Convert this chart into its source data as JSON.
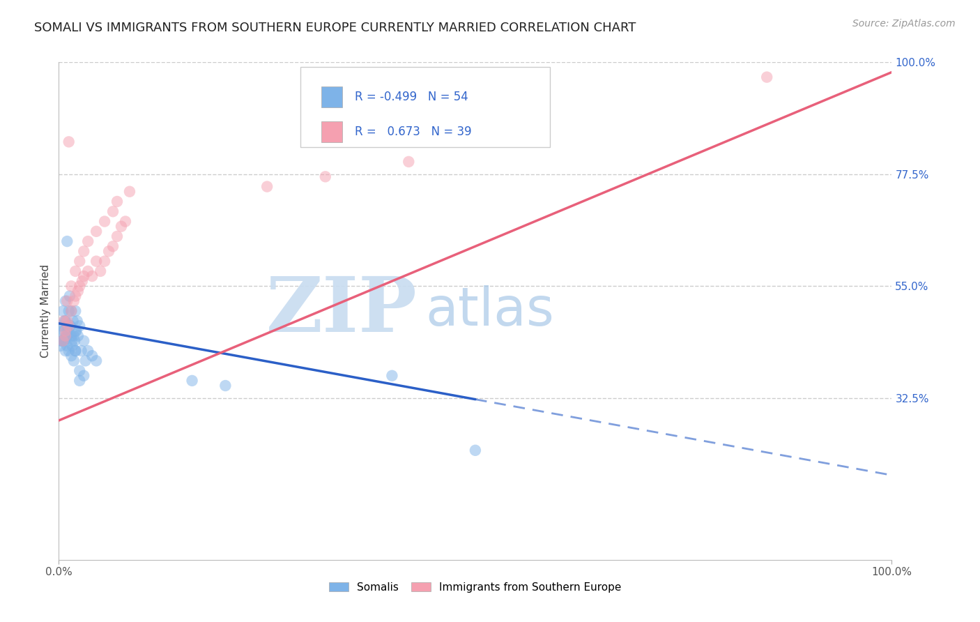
{
  "title": "SOMALI VS IMMIGRANTS FROM SOUTHERN EUROPE CURRENTLY MARRIED CORRELATION CHART",
  "source": "Source: ZipAtlas.com",
  "ylabel": "Currently Married",
  "legend_blue_r": "-0.499",
  "legend_blue_n": "54",
  "legend_pink_r": "0.673",
  "legend_pink_n": "39",
  "blue_scatter_color": "#7EB3E8",
  "pink_scatter_color": "#F5A0B0",
  "blue_line_color": "#2B5FC7",
  "pink_line_color": "#E8607A",
  "legend_text_color": "#3366CC",
  "right_axis_color": "#3366CC",
  "watermark_color": "#C8DCF0",
  "title_fontsize": 13,
  "axis_label_fontsize": 11,
  "legend_fontsize": 12,
  "blue_line_x0": 0,
  "blue_line_y0": 47.5,
  "blue_line_x1": 100,
  "blue_line_y1": 17.0,
  "blue_solid_end": 50,
  "pink_line_x0": 0,
  "pink_line_y0": 28.0,
  "pink_line_x1": 100,
  "pink_line_y1": 98.0,
  "xlim": [
    0,
    100
  ],
  "ylim": [
    0,
    100
  ],
  "yticks_right": [
    32.5,
    55.0,
    77.5,
    100.0
  ],
  "ytick_labels": [
    "32.5%",
    "55.0%",
    "77.5%",
    "100.0%"
  ],
  "blue_x": [
    0.3,
    0.5,
    0.5,
    0.7,
    0.8,
    0.9,
    1.0,
    1.0,
    1.1,
    1.2,
    1.3,
    1.4,
    1.5,
    1.5,
    1.6,
    1.7,
    1.8,
    1.9,
    2.0,
    2.0,
    2.1,
    2.2,
    2.3,
    2.5,
    2.7,
    3.0,
    3.2,
    3.5,
    4.0,
    4.5,
    0.4,
    0.6,
    0.8,
    1.0,
    1.2,
    1.5,
    1.8,
    2.0,
    2.5,
    3.0,
    0.2,
    0.4,
    0.6,
    0.8,
    1.0,
    1.3,
    1.6,
    2.0,
    2.5,
    0.3,
    16.0,
    20.0,
    40.0,
    50.0
  ],
  "blue_y": [
    47,
    50,
    44,
    48,
    52,
    45,
    47,
    43,
    46,
    50,
    53,
    47,
    50,
    45,
    44,
    48,
    45,
    44,
    50,
    46,
    46,
    48,
    45,
    47,
    42,
    44,
    40,
    42,
    41,
    40,
    44,
    46,
    48,
    45,
    42,
    41,
    40,
    42,
    38,
    37,
    43,
    46,
    44,
    42,
    64,
    47,
    43,
    42,
    36,
    44,
    36,
    35,
    37,
    22
  ],
  "pink_x": [
    0.5,
    0.8,
    1.0,
    1.2,
    1.5,
    1.8,
    2.0,
    2.3,
    2.5,
    2.8,
    3.0,
    3.5,
    4.0,
    4.5,
    5.0,
    5.5,
    6.0,
    6.5,
    7.0,
    7.5,
    8.0,
    0.6,
    1.0,
    1.5,
    2.0,
    2.5,
    3.0,
    3.5,
    4.5,
    5.5,
    6.5,
    7.0,
    8.5,
    25.0,
    32.0,
    42.0,
    0.8,
    1.2,
    85.0
  ],
  "pink_y": [
    44,
    46,
    48,
    47,
    50,
    52,
    53,
    54,
    55,
    56,
    57,
    58,
    57,
    60,
    58,
    60,
    62,
    63,
    65,
    67,
    68,
    48,
    52,
    55,
    58,
    60,
    62,
    64,
    66,
    68,
    70,
    72,
    74,
    75,
    77,
    80,
    45,
    84,
    97
  ]
}
